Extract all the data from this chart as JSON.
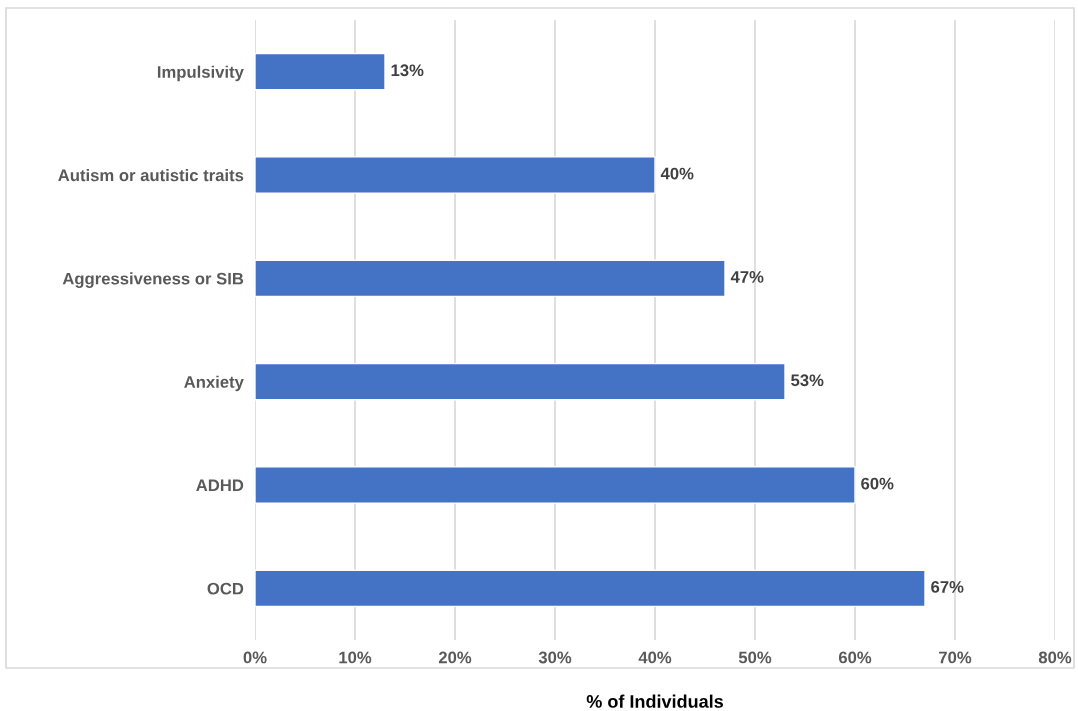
{
  "chart_data": {
    "type": "bar",
    "orientation": "horizontal",
    "xlabel": "% of Individuals",
    "categories": [
      "Impulsivity",
      "Autism or autistic traits",
      "Aggressiveness or SIB",
      "Anxiety",
      "ADHD",
      "OCD"
    ],
    "values": [
      13,
      40,
      47,
      53,
      60,
      67
    ],
    "value_labels": [
      "13%",
      "40%",
      "47%",
      "53%",
      "60%",
      "67%"
    ],
    "color": "#4472c4",
    "xlim": [
      0,
      80
    ],
    "xticks": [
      {
        "value": 0,
        "label": "0%"
      },
      {
        "value": 10,
        "label": "10%"
      },
      {
        "value": 20,
        "label": "20%"
      },
      {
        "value": 30,
        "label": "30%"
      },
      {
        "value": 40,
        "label": "40%"
      },
      {
        "value": 50,
        "label": "50%"
      },
      {
        "value": 60,
        "label": "60%"
      },
      {
        "value": 70,
        "label": "70%"
      },
      {
        "value": 80,
        "label": "80%"
      }
    ],
    "grid": "x",
    "legend": false
  }
}
